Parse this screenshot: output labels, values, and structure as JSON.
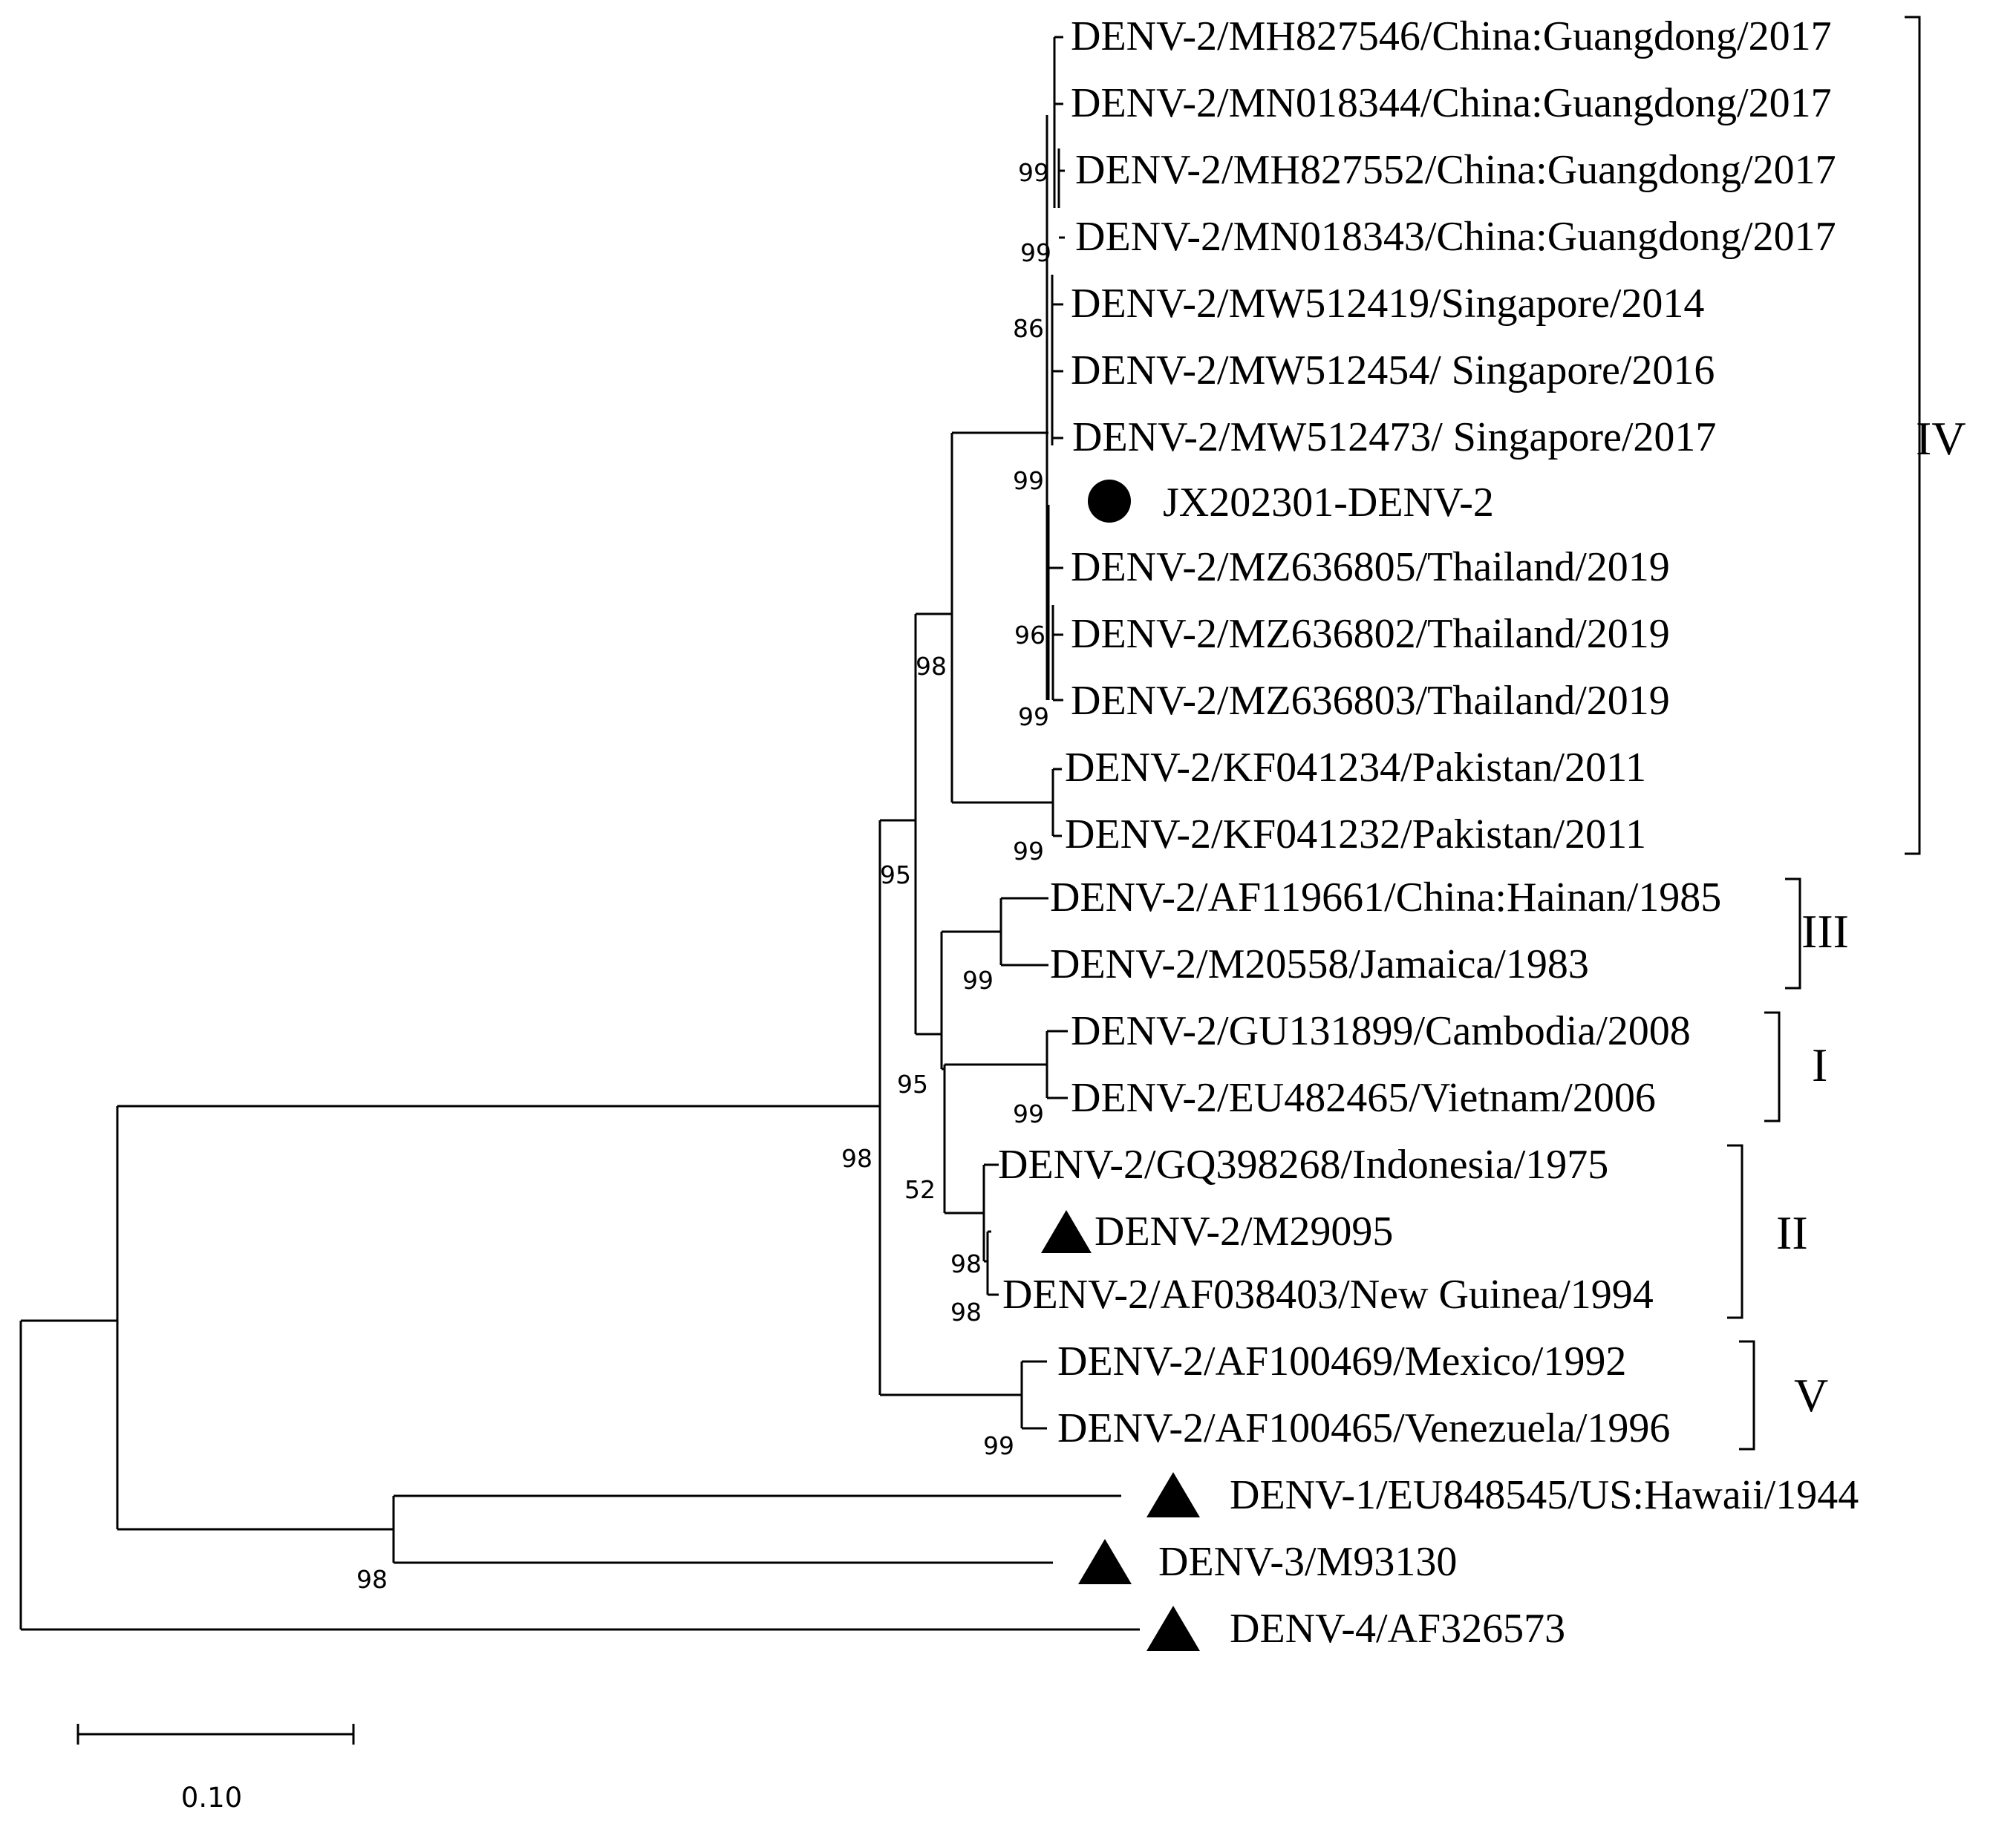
{
  "taxa": [
    {
      "id": "t1",
      "label": "DENV-2/MH827546/China:Guangdong/2017",
      "marker": "none"
    },
    {
      "id": "t2",
      "label": "DENV-2/MN018344/China:Guangdong/2017",
      "marker": "none"
    },
    {
      "id": "t3",
      "label": "DENV-2/MH827552/China:Guangdong/2017",
      "marker": "none"
    },
    {
      "id": "t4",
      "label": "DENV-2/MN018343/China:Guangdong/2017",
      "marker": "none"
    },
    {
      "id": "t5",
      "label": "DENV-2/MW512419/Singapore/2014",
      "marker": "none"
    },
    {
      "id": "t6",
      "label": "DENV-2/MW512454/ Singapore/2016",
      "marker": "none"
    },
    {
      "id": "t7",
      "label": "DENV-2/MW512473/ Singapore/2017",
      "marker": "none"
    },
    {
      "id": "t8",
      "label": "JX202301-DENV-2",
      "marker": "circle"
    },
    {
      "id": "t9",
      "label": "DENV-2/MZ636805/Thailand/2019",
      "marker": "none"
    },
    {
      "id": "t10",
      "label": "DENV-2/MZ636802/Thailand/2019",
      "marker": "none"
    },
    {
      "id": "t11",
      "label": "DENV-2/MZ636803/Thailand/2019",
      "marker": "none"
    },
    {
      "id": "t12",
      "label": "DENV-2/KF041234/Pakistan/2011",
      "marker": "none"
    },
    {
      "id": "t13",
      "label": "DENV-2/KF041232/Pakistan/2011",
      "marker": "none"
    },
    {
      "id": "t14",
      "label": "DENV-2/AF119661/China:Hainan/1985",
      "marker": "none"
    },
    {
      "id": "t15",
      "label": "DENV-2/M20558/Jamaica/1983",
      "marker": "none"
    },
    {
      "id": "t16",
      "label": "DENV-2/GU131899/Cambodia/2008",
      "marker": "none"
    },
    {
      "id": "t17",
      "label": "DENV-2/EU482465/Vietnam/2006",
      "marker": "none"
    },
    {
      "id": "t18",
      "label": "DENV-2/GQ398268/Indonesia/1975",
      "marker": "none"
    },
    {
      "id": "t19",
      "label": "DENV-2/M29095",
      "marker": "triangle"
    },
    {
      "id": "t20",
      "label": "DENV-2/AF038403/New Guinea/1994",
      "marker": "none"
    },
    {
      "id": "t21",
      "label": "DENV-2/AF100469/Mexico/1992",
      "marker": "none"
    },
    {
      "id": "t22",
      "label": "DENV-2/AF100465/Venezuela/1996",
      "marker": "none"
    },
    {
      "id": "t23",
      "label": "DENV-1/EU848545/US:Hawaii/1944",
      "marker": "triangle"
    },
    {
      "id": "t24",
      "label": "DENV-3/M93130",
      "marker": "triangle"
    },
    {
      "id": "t25",
      "label": "DENV-4/AF326573",
      "marker": "triangle"
    }
  ],
  "bootstrap": [
    "99",
    "99",
    "86",
    "99",
    "96",
    "99",
    "98",
    "99",
    "95",
    "99",
    "95",
    "99",
    "52",
    "98",
    "98",
    "98",
    "99",
    "98"
  ],
  "clades": [
    "IV",
    "III",
    "I",
    "II",
    "V"
  ],
  "scale_bar": {
    "value": 0.1,
    "label": "0.10"
  }
}
